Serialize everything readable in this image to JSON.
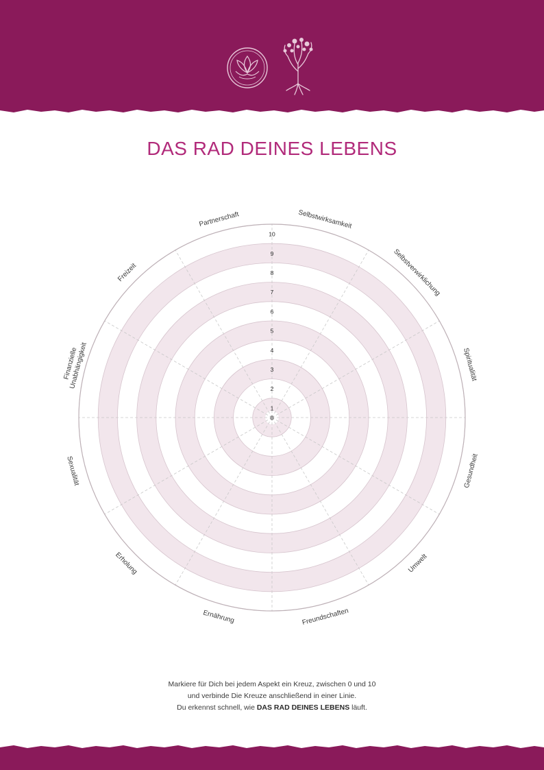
{
  "title": "DAS RAD DEINES LEBENS",
  "colors": {
    "brand": "#8a1a5a",
    "title": "#b12a7a",
    "ring_fill": "#f2e6ec",
    "grid_line": "#c8c8c8",
    "text": "#3a3a3a"
  },
  "logos": {
    "left": "lotus-mandala-icon",
    "right": "tree-of-life-icon"
  },
  "wheel": {
    "scale": [
      "0",
      "1",
      "2",
      "3",
      "4",
      "5",
      "6",
      "7",
      "8",
      "9",
      "10"
    ],
    "segments": [
      "Selbstwirksamkeit",
      "Selbstverwirklichung",
      "Spiritualität",
      "Gesundheit",
      "Umwelt",
      "Freundschaften",
      "Ernährung",
      "Erholung",
      "Sexualität",
      "Finanzielle Unabhängigkeit",
      "Freizeit",
      "Partnerschaft"
    ]
  },
  "instructions": {
    "line1": "Markiere für Dich bei jedem Aspekt ein Kreuz, zwischen 0 und 10",
    "line2": "und verbinde Die Kreuze anschließend in einer Linie.",
    "line3_pre": "Du erkennst schnell, wie",
    "line3_bold": "DAS RAD DEINES LEBENS",
    "line3_post": "läuft."
  }
}
